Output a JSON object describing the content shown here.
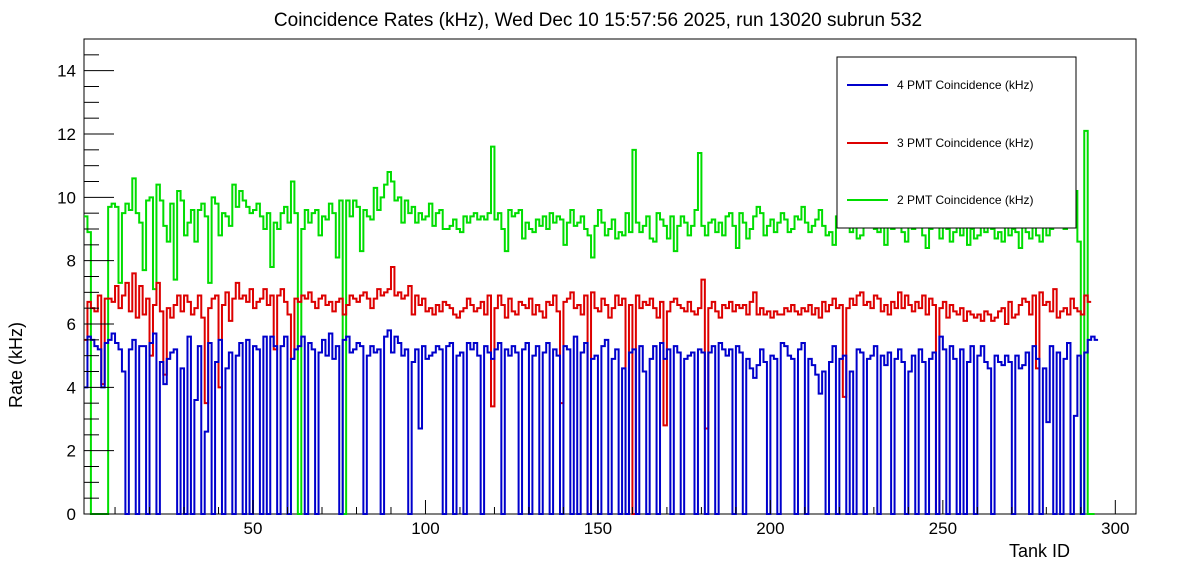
{
  "chart_data": {
    "type": "line",
    "style": "step-histogram",
    "title": "Coincidence Rates (kHz), Wed Dec 10 15:57:56 2025, run 13020 subrun 532",
    "xlabel": "Tank ID",
    "ylabel": "Rate (kHz)",
    "xlim": [
      1,
      306
    ],
    "ylim": [
      0,
      15
    ],
    "x_ticks": [
      50,
      100,
      150,
      200,
      250,
      300
    ],
    "x_tick_labels": [
      "50",
      "100",
      "150",
      "200",
      "250",
      "300"
    ],
    "y_ticks": [
      0,
      2,
      4,
      6,
      8,
      10,
      12,
      14
    ],
    "y_tick_labels": [
      "0",
      "2",
      "4",
      "6",
      "8",
      "10",
      "12",
      "14"
    ],
    "grid": false,
    "legend_position": "top-right",
    "series": [
      {
        "name": "4 PMT Coincidence (kHz)",
        "color": "#0000cc",
        "x_start": 1,
        "values": [
          4.0,
          5.6,
          5.5,
          5.3,
          5.2,
          4.0,
          5.4,
          5.5,
          5.7,
          5.4,
          5.2,
          4.5,
          0,
          5.2,
          5.5,
          0,
          5.3,
          5.3,
          0,
          5.4,
          5.7,
          0,
          4.8,
          4.1,
          4.9,
          5.1,
          5.2,
          0,
          4.6,
          0,
          5.6,
          0,
          3.6,
          5.3,
          0,
          2.6,
          5.4,
          0,
          4.8,
          5.5,
          0,
          4.6,
          5.1,
          0,
          5.0,
          5.4,
          0,
          5.5,
          0,
          5.3,
          5.2,
          0,
          5.6,
          0,
          5.6,
          5.3,
          0,
          5.3,
          5.6,
          0,
          4.9,
          5.2,
          5.3,
          5.6,
          0,
          5.4,
          5.2,
          0,
          5.1,
          5.5,
          5.0,
          5.7,
          4.9,
          5.3,
          0,
          5.5,
          5.6,
          5.1,
          5.2,
          5.4,
          5.3,
          0,
          5.0,
          5.3,
          5.1,
          5.2,
          0,
          5.6,
          5.8,
          5.1,
          5.6,
          5.4,
          5.0,
          5.2,
          0,
          4.8,
          5.2,
          2.7,
          5.3,
          4.9,
          5.0,
          5.1,
          5.3,
          5.2,
          0,
          5.3,
          5.4,
          0,
          5.0,
          5.1,
          0,
          5.4,
          5.2,
          5.4,
          5.0,
          0,
          5.3,
          5.1,
          4.9,
          5.2,
          5.4,
          0,
          5.2,
          5.0,
          5.3,
          5.1,
          0,
          5.2,
          5.4,
          0,
          5.0,
          5.3,
          0,
          5.1,
          5.4,
          0,
          5.2,
          5.0,
          0,
          5.3,
          5.2,
          0,
          5.6,
          0,
          5.1,
          5.4,
          0,
          4.9,
          5.0,
          0,
          5.3,
          5.5,
          0,
          4.9,
          5.2,
          0,
          4.6,
          0,
          5.1,
          5.2,
          0,
          5.3,
          4.5,
          0,
          4.9,
          5.3,
          0,
          5.4,
          4.9,
          5.2,
          0,
          5.3,
          5.1,
          0,
          4.9,
          5.0,
          5.1,
          0,
          5.2,
          5.1,
          0,
          5.1,
          5.3,
          0,
          5.4,
          5.2,
          5.0,
          5.2,
          0,
          5.3,
          5.1,
          0,
          4.9,
          4.6,
          4.3,
          4.7,
          5.2,
          4.8,
          0,
          5.0,
          4.9,
          0,
          5.4,
          5.3,
          5.0,
          4.9,
          0,
          5.2,
          5.4,
          0,
          4.9,
          4.7,
          4.4,
          3.8,
          4.5,
          0,
          4.8,
          5.3,
          0,
          4.9,
          5.0,
          0,
          4.5,
          0,
          5.2,
          5.1,
          0,
          4.9,
          5.0,
          5.3,
          0,
          5.0,
          4.7,
          5.1,
          0,
          4.9,
          5.2,
          4.8,
          0,
          4.5,
          5.0,
          0,
          5.2,
          4.8,
          0,
          4.9,
          5.1,
          0,
          5.6,
          5.2,
          0,
          5.3,
          4.9,
          0,
          5.2,
          0,
          4.8,
          5.3,
          0,
          5.0,
          5.3,
          4.8,
          4.6,
          0,
          5.0,
          4.8,
          4.7,
          5.0,
          4.8,
          0,
          5.0,
          4.6,
          4.7,
          5.1,
          0,
          5.3,
          4.9,
          0,
          4.6,
          2.9,
          5.3,
          0,
          5.1,
          0,
          4.9,
          5.4,
          0,
          3.1,
          5.0,
          0,
          5.1,
          5.5,
          5.6,
          5.5
        ]
      },
      {
        "name": "3 PMT Coincidence (kHz)",
        "color": "#dd0000",
        "x_start": 1,
        "values": [
          5.5,
          6.7,
          6.5,
          6.4,
          6.9,
          4.1,
          6.8,
          6.8,
          6.7,
          7.2,
          6.5,
          6.9,
          7.3,
          6.4,
          7.6,
          6.2,
          7.2,
          6.3,
          6.8,
          5.0,
          6.6,
          7.3,
          6.4,
          4.4,
          6.5,
          6.2,
          6.6,
          6.9,
          6.4,
          6.9,
          6.7,
          6.3,
          6.5,
          6.9,
          6.2,
          3.5,
          6.5,
          6.8,
          6.9,
          4.0,
          6.6,
          7.0,
          6.1,
          6.8,
          7.3,
          6.8,
          6.9,
          6.7,
          7.1,
          6.5,
          6.7,
          6.8,
          7.1,
          6.6,
          6.9,
          5.2,
          6.9,
          7.1,
          6.7,
          6.3,
          4.9,
          6.8,
          6.7,
          6.9,
          6.8,
          7.0,
          6.7,
          6.5,
          6.8,
          6.9,
          6.6,
          6.7,
          6.4,
          6.7,
          6.8,
          6.3,
          6.6,
          6.9,
          6.8,
          6.7,
          6.9,
          7.0,
          6.8,
          6.5,
          6.8,
          7.1,
          6.9,
          7.0,
          7.1,
          7.8,
          6.9,
          7.0,
          6.8,
          6.9,
          7.2,
          6.3,
          6.9,
          6.6,
          6.8,
          6.4,
          6.5,
          6.3,
          6.6,
          6.4,
          6.7,
          6.6,
          6.5,
          6.3,
          6.2,
          6.4,
          6.5,
          6.8,
          6.6,
          6.4,
          6.5,
          6.7,
          6.3,
          6.9,
          3.4,
          6.5,
          6.9,
          6.6,
          6.2,
          6.8,
          6.4,
          6.3,
          6.7,
          6.6,
          6.5,
          6.8,
          6.3,
          6.6,
          6.4,
          6.2,
          6.7,
          6.6,
          6.9,
          6.4,
          3.5,
          6.7,
          6.8,
          7.0,
          6.5,
          6.6,
          6.3,
          6.9,
          0,
          7.0,
          6.5,
          6.4,
          6.8,
          6.6,
          6.2,
          6.5,
          6.9,
          6.6,
          6.8,
          0,
          6.6,
          0,
          6.9,
          6.5,
          6.7,
          6.6,
          6.8,
          6.5,
          6.2,
          6.7,
          2.8,
          6.4,
          6.7,
          6.8,
          6.6,
          6.5,
          6.4,
          6.7,
          6.4,
          6.3,
          6.5,
          7.4,
          2.7,
          6.5,
          6.7,
          6.4,
          6.2,
          6.6,
          6.5,
          6.7,
          6.4,
          6.6,
          6.5,
          6.6,
          6.3,
          6.7,
          7.0,
          6.3,
          6.5,
          6.3,
          6.4,
          6.2,
          6.4,
          6.3,
          6.3,
          6.5,
          6.4,
          6.6,
          6.4,
          6.3,
          6.5,
          6.4,
          6.6,
          6.3,
          6.5,
          6.2,
          6.7,
          6.4,
          6.6,
          6.8,
          6.5,
          6.6,
          3.7,
          6.5,
          6.8,
          6.6,
          6.9,
          7.0,
          6.6,
          6.7,
          6.5,
          6.9,
          6.8,
          6.4,
          6.6,
          6.3,
          6.7,
          6.5,
          7.0,
          6.5,
          6.9,
          6.6,
          6.4,
          6.7,
          6.5,
          6.9,
          6.3,
          6.8,
          6.6,
          0,
          6.5,
          6.7,
          6.2,
          6.6,
          6.4,
          6.3,
          6.5,
          6.1,
          6.4,
          6.3,
          6.2,
          6.3,
          6.1,
          6.4,
          6.3,
          6.1,
          6.2,
          6.4,
          6.5,
          6.0,
          6.7,
          6.2,
          6.3,
          6.6,
          6.8,
          6.7,
          6.3,
          6.9,
          4.6,
          7.0,
          6.6,
          6.7,
          6.4,
          7.1,
          6.2,
          6.4,
          6.5,
          6.3,
          6.8,
          6.5,
          6.4,
          6.3,
          6.9,
          6.7
        ]
      },
      {
        "name": "2 PMT Coincidence (kHz)",
        "color": "#00dd00",
        "x_start": 1,
        "values": [
          9.4,
          8.9,
          0,
          0,
          0,
          0,
          0,
          9.7,
          9.8,
          9.7,
          7.3,
          9.5,
          9.8,
          9.6,
          10.6,
          9.5,
          9.2,
          7.7,
          9.9,
          10.0,
          7.1,
          10.4,
          9.9,
          9.1,
          8.6,
          9.8,
          7.4,
          10.2,
          9.9,
          8.8,
          9.2,
          9.6,
          8.6,
          9.6,
          9.8,
          9.4,
          7.3,
          10.0,
          9.8,
          8.8,
          9.5,
          9.4,
          9.1,
          10.4,
          9.7,
          10.2,
          9.9,
          9.7,
          9.5,
          9.6,
          9.8,
          9.4,
          9.0,
          9.5,
          7.8,
          9.2,
          9.0,
          9.5,
          9.7,
          9.2,
          10.5,
          9.5,
          0,
          9.0,
          9.6,
          9.2,
          9.5,
          9.6,
          8.8,
          9.4,
          9.3,
          9.8,
          9.5,
          8.1,
          9.9,
          0,
          9.9,
          9.4,
          9.9,
          9.7,
          8.3,
          9.6,
          9.4,
          9.3,
          10.3,
          9.6,
          10.0,
          10.4,
          10.8,
          10.5,
          9.9,
          10.0,
          9.2,
          9.9,
          9.5,
          9.7,
          9.2,
          9.5,
          9.3,
          9.4,
          9.8,
          9.1,
          9.5,
          9.6,
          9.0,
          9.0,
          9.1,
          9.3,
          9.0,
          8.9,
          9.4,
          9.2,
          9.4,
          9.5,
          9.3,
          9.4,
          9.3,
          9.5,
          11.6,
          9.3,
          9.5,
          9.0,
          8.3,
          9.6,
          9.4,
          9.5,
          9.6,
          8.7,
          9.2,
          9.0,
          8.9,
          9.3,
          9.1,
          9.4,
          9.0,
          9.5,
          9.2,
          9.4,
          9.3,
          8.5,
          9.2,
          9.6,
          9.1,
          9.2,
          9.4,
          9.0,
          8.8,
          8.1,
          9.1,
          9.6,
          9.2,
          8.8,
          9.0,
          9.3,
          8.7,
          8.9,
          8.8,
          9.5,
          8.9,
          11.5,
          9.2,
          8.9,
          9.1,
          9.4,
          8.7,
          8.6,
          9.5,
          9.3,
          9.1,
          8.7,
          9.4,
          8.3,
          9.1,
          9.4,
          9.2,
          8.8,
          9.1,
          9.6,
          11.4,
          9.1,
          8.8,
          9.2,
          9.3,
          8.9,
          9.2,
          8.8,
          9.4,
          9.5,
          9.1,
          8.4,
          9.5,
          9.2,
          8.7,
          9.0,
          9.4,
          9.7,
          9.5,
          8.8,
          9.1,
          9.3,
          8.9,
          9.2,
          9.5,
          9.3,
          8.9,
          9.0,
          9.4,
          9.3,
          9.7,
          9.2,
          8.9,
          9.1,
          9.3,
          9.6,
          9.1,
          8.8,
          8.9,
          8.5,
          9.4,
          9.1,
          9.3,
          9.5,
          8.9,
          9.2,
          8.7,
          8.8,
          10.8,
          9.1,
          9.4,
          9.0,
          8.9,
          9.2,
          8.5,
          9.3,
          9.0,
          9.1,
          9.4,
          8.9,
          8.6,
          9.2,
          9.0,
          9.5,
          9.1,
          8.8,
          8.4,
          9.0,
          9.3,
          9.5,
          8.7,
          9.2,
          9.0,
          8.6,
          8.9,
          9.1,
          8.8,
          9.2,
          8.5,
          9.0,
          8.7,
          8.8,
          9.1,
          8.9,
          9.3,
          9.0,
          8.7,
          8.9,
          8.6,
          9.2,
          8.8,
          9.0,
          8.9,
          8.4,
          9.2,
          8.9,
          8.7,
          9.1,
          8.8,
          8.6,
          9.3,
          8.8,
          9.0,
          9.5,
          9.4,
          10.1,
          9.0,
          9.1,
          9.4,
          10.2,
          8.6,
          0,
          12.1,
          0,
          0
        ]
      }
    ]
  }
}
